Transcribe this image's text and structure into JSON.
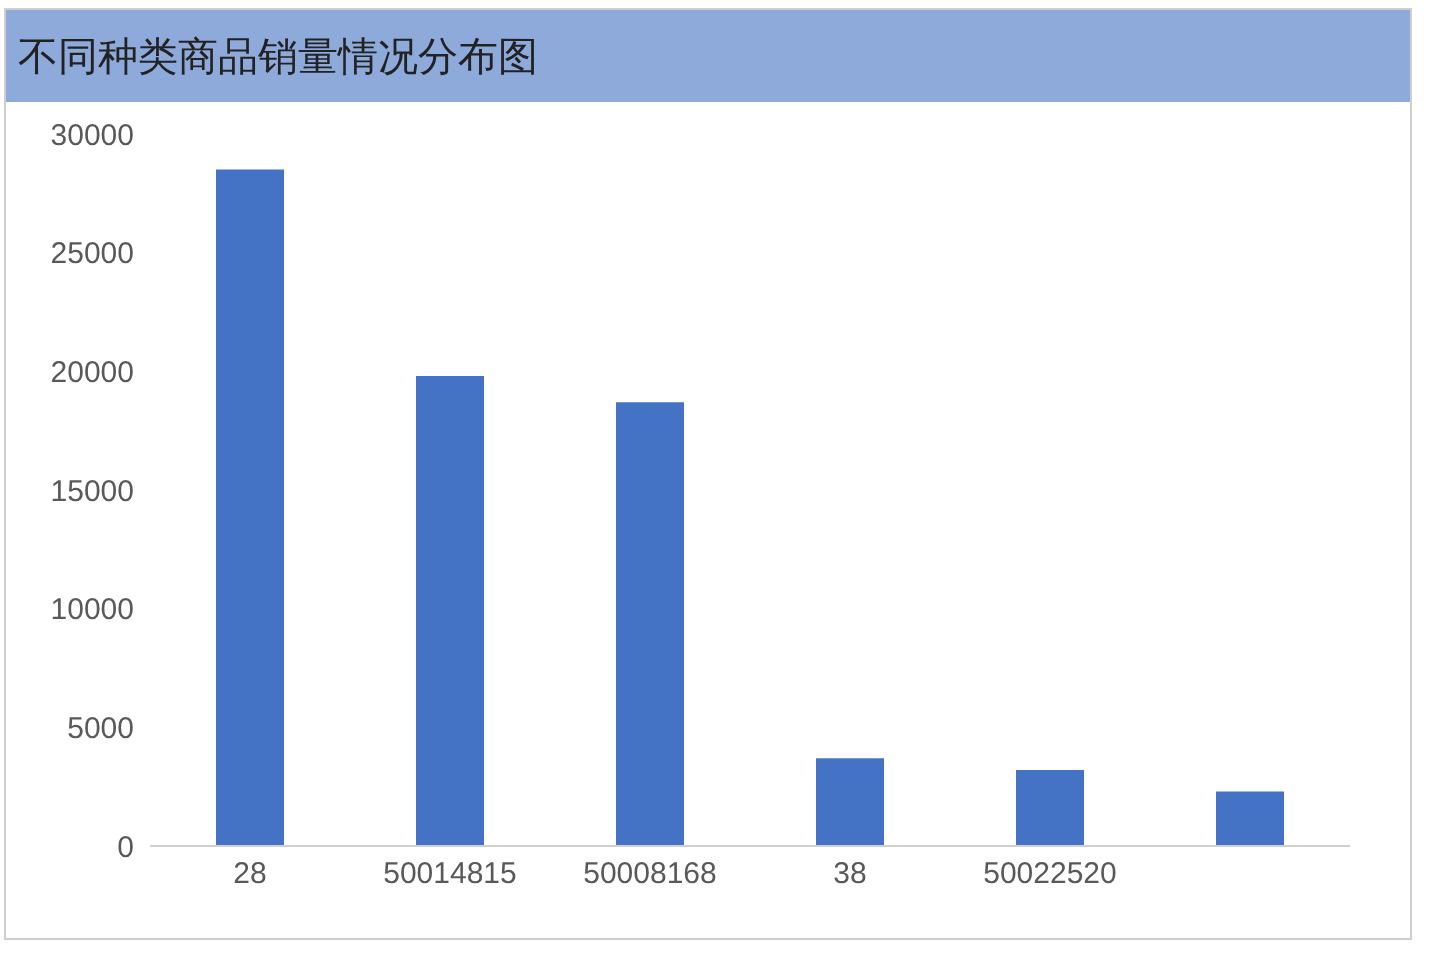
{
  "chart_data": {
    "type": "bar",
    "title": "不同种类商品销量情况分布图",
    "categories": [
      "28",
      "50014815",
      "50008168",
      "38",
      "50022520",
      null
    ],
    "values": [
      28500,
      19800,
      18700,
      3700,
      3200,
      2300
    ],
    "color": "#4472c4",
    "ylim": [
      0,
      30000
    ],
    "yticks": [
      0,
      5000,
      10000,
      15000,
      20000,
      25000,
      30000
    ],
    "grid": false,
    "legend": false
  }
}
